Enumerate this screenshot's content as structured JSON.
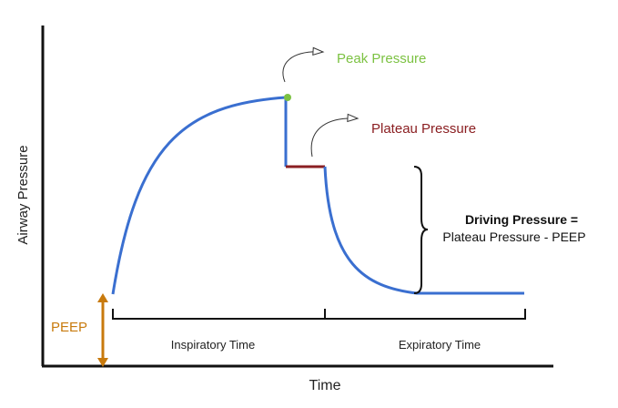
{
  "axes": {
    "x_label": "Time",
    "y_label": "Airway Pressure"
  },
  "annotations": {
    "peak": "Peak Pressure",
    "plateau": "Plateau Pressure",
    "driving_title": "Driving Pressure =",
    "driving_formula": "Plateau Pressure - PEEP",
    "peep": "PEEP",
    "inspiratory": "Inspiratory Time",
    "expiratory": "Expiratory Time"
  },
  "colors": {
    "curve": "#3a6fd0",
    "plateau_segment": "#8b1f22",
    "peak_marker": "#7cc242",
    "peak_text": "#7cc242",
    "plateau_text": "#8b1f22",
    "peep": "#c87a0d",
    "axis": "#111111",
    "text": "#222222"
  }
}
